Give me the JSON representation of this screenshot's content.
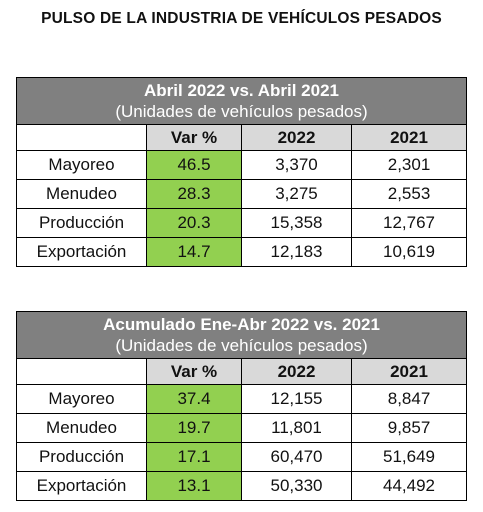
{
  "title": "PULSO DE LA INDUSTRIA DE VEHÍCULOS PESADOS",
  "colors": {
    "header_bg": "#808080",
    "column_header_bg": "#d9d9d9",
    "var_bg": "#92d050"
  },
  "tables": [
    {
      "title": "Abril 2022 vs. Abril 2021",
      "subtitle": "(Unidades de vehículos pesados)",
      "columns": [
        "",
        "Var %",
        "2022",
        "2021"
      ],
      "rows": [
        {
          "label": "Mayoreo",
          "var": "46.5",
          "y2022": "3,370",
          "y2021": "2,301"
        },
        {
          "label": "Menudeo",
          "var": "28.3",
          "y2022": "3,275",
          "y2021": "2,553"
        },
        {
          "label": "Producción",
          "var": "20.3",
          "y2022": "15,358",
          "y2021": "12,767"
        },
        {
          "label": "Exportación",
          "var": "14.7",
          "y2022": "12,183",
          "y2021": "10,619"
        }
      ]
    },
    {
      "title": "Acumulado Ene-Abr 2022 vs. 2021",
      "subtitle": "(Unidades de vehículos pesados)",
      "columns": [
        "",
        "Var %",
        "2022",
        "2021"
      ],
      "rows": [
        {
          "label": "Mayoreo",
          "var": "37.4",
          "y2022": "12,155",
          "y2021": "8,847"
        },
        {
          "label": "Menudeo",
          "var": "19.7",
          "y2022": "11,801",
          "y2021": "9,857"
        },
        {
          "label": "Producción",
          "var": "17.1",
          "y2022": "60,470",
          "y2021": "51,649"
        },
        {
          "label": "Exportación",
          "var": "13.1",
          "y2022": "50,330",
          "y2021": "44,492"
        }
      ]
    }
  ]
}
